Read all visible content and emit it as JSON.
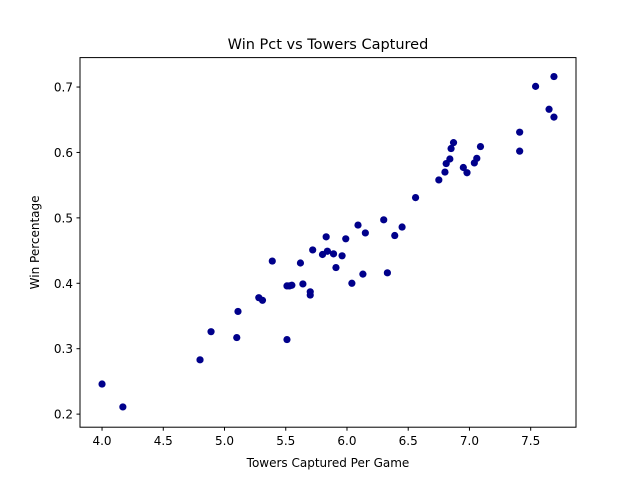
{
  "chart_data": {
    "type": "scatter",
    "title": "Win Pct vs Towers Captured",
    "xlabel": "Towers Captured Per Game",
    "ylabel": "Win Percentage",
    "xlim": [
      3.82,
      7.87
    ],
    "ylim": [
      0.18,
      0.745
    ],
    "xticks": [
      4.0,
      4.5,
      5.0,
      5.5,
      6.0,
      6.5,
      7.0,
      7.5
    ],
    "xtick_labels": [
      "4.0",
      "4.5",
      "5.0",
      "5.5",
      "6.0",
      "6.5",
      "7.0",
      "7.5"
    ],
    "yticks": [
      0.2,
      0.3,
      0.4,
      0.5,
      0.6,
      0.7
    ],
    "ytick_labels": [
      "0.2",
      "0.3",
      "0.4",
      "0.5",
      "0.6",
      "0.7"
    ],
    "grid": false,
    "marker_color": "#00008b",
    "points": [
      {
        "x": 4.0,
        "y": 0.246
      },
      {
        "x": 4.17,
        "y": 0.211
      },
      {
        "x": 4.8,
        "y": 0.283
      },
      {
        "x": 4.89,
        "y": 0.326
      },
      {
        "x": 5.1,
        "y": 0.317
      },
      {
        "x": 5.11,
        "y": 0.357
      },
      {
        "x": 5.28,
        "y": 0.378
      },
      {
        "x": 5.31,
        "y": 0.374
      },
      {
        "x": 5.39,
        "y": 0.434
      },
      {
        "x": 5.51,
        "y": 0.314
      },
      {
        "x": 5.51,
        "y": 0.396
      },
      {
        "x": 5.53,
        "y": 0.396
      },
      {
        "x": 5.55,
        "y": 0.397
      },
      {
        "x": 5.62,
        "y": 0.431
      },
      {
        "x": 5.64,
        "y": 0.399
      },
      {
        "x": 5.7,
        "y": 0.387
      },
      {
        "x": 5.7,
        "y": 0.382
      },
      {
        "x": 5.72,
        "y": 0.451
      },
      {
        "x": 5.8,
        "y": 0.444
      },
      {
        "x": 5.83,
        "y": 0.471
      },
      {
        "x": 5.84,
        "y": 0.449
      },
      {
        "x": 5.89,
        "y": 0.445
      },
      {
        "x": 5.91,
        "y": 0.424
      },
      {
        "x": 5.96,
        "y": 0.442
      },
      {
        "x": 5.99,
        "y": 0.468
      },
      {
        "x": 6.04,
        "y": 0.4
      },
      {
        "x": 6.09,
        "y": 0.489
      },
      {
        "x": 6.13,
        "y": 0.414
      },
      {
        "x": 6.15,
        "y": 0.477
      },
      {
        "x": 6.3,
        "y": 0.497
      },
      {
        "x": 6.33,
        "y": 0.416
      },
      {
        "x": 6.39,
        "y": 0.473
      },
      {
        "x": 6.45,
        "y": 0.486
      },
      {
        "x": 6.56,
        "y": 0.531
      },
      {
        "x": 6.75,
        "y": 0.558
      },
      {
        "x": 6.8,
        "y": 0.57
      },
      {
        "x": 6.81,
        "y": 0.583
      },
      {
        "x": 6.84,
        "y": 0.59
      },
      {
        "x": 6.85,
        "y": 0.606
      },
      {
        "x": 6.87,
        "y": 0.615
      },
      {
        "x": 6.95,
        "y": 0.577
      },
      {
        "x": 6.98,
        "y": 0.569
      },
      {
        "x": 7.04,
        "y": 0.584
      },
      {
        "x": 7.06,
        "y": 0.591
      },
      {
        "x": 7.09,
        "y": 0.609
      },
      {
        "x": 7.41,
        "y": 0.631
      },
      {
        "x": 7.41,
        "y": 0.602
      },
      {
        "x": 7.54,
        "y": 0.701
      },
      {
        "x": 7.65,
        "y": 0.666
      },
      {
        "x": 7.69,
        "y": 0.716
      },
      {
        "x": 7.69,
        "y": 0.654
      }
    ]
  }
}
